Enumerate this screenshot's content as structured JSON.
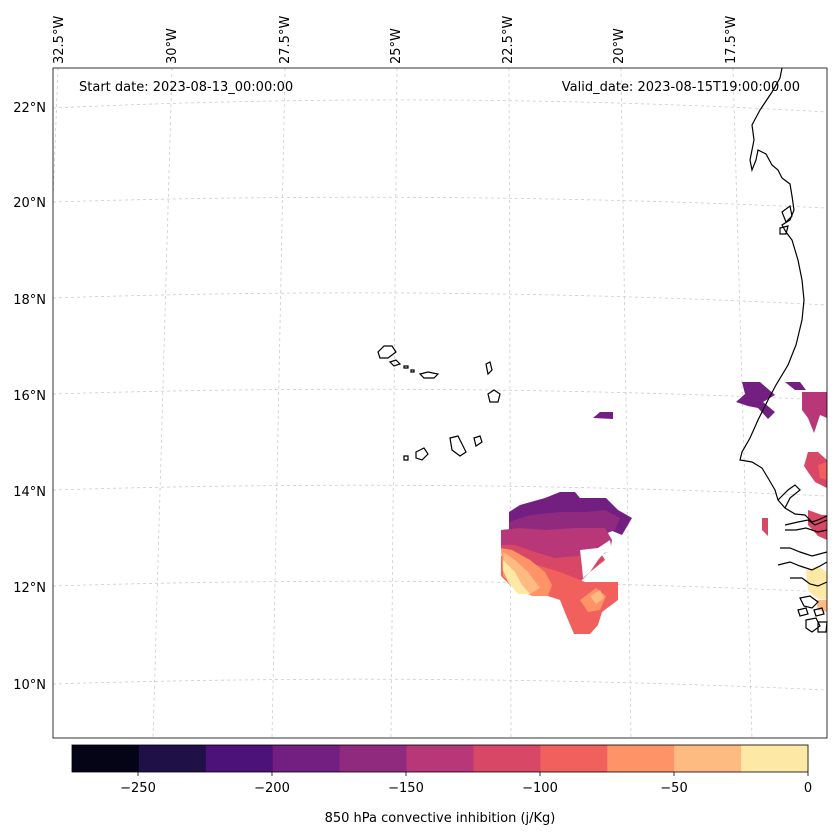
{
  "header": {
    "start_date": "Start date: 2023-08-13_00:00:00",
    "valid_date": "Valid_date: 2023-08-15T19:00:00.00"
  },
  "axes": {
    "longitude_ticks": [
      "32.5°W",
      "30°W",
      "27.5°W",
      "25°W",
      "22.5°W",
      "20°W",
      "17.5°W"
    ],
    "latitude_ticks": [
      "22°N",
      "20°N",
      "18°N",
      "16°N",
      "14°N",
      "12°N",
      "10°N"
    ]
  },
  "colorbar": {
    "label": "850 hPa convective inhibition (j/Kg)",
    "tick_labels": [
      "−250",
      "−200",
      "−150",
      "−100",
      "−50",
      "0"
    ],
    "colors": [
      "#050416",
      "#1f1147",
      "#4d117a",
      "#721f81",
      "#8f2a7f",
      "#b73779",
      "#d94766",
      "#f1605d",
      "#fd9366",
      "#febb81",
      "#fde8a5"
    ]
  }
}
